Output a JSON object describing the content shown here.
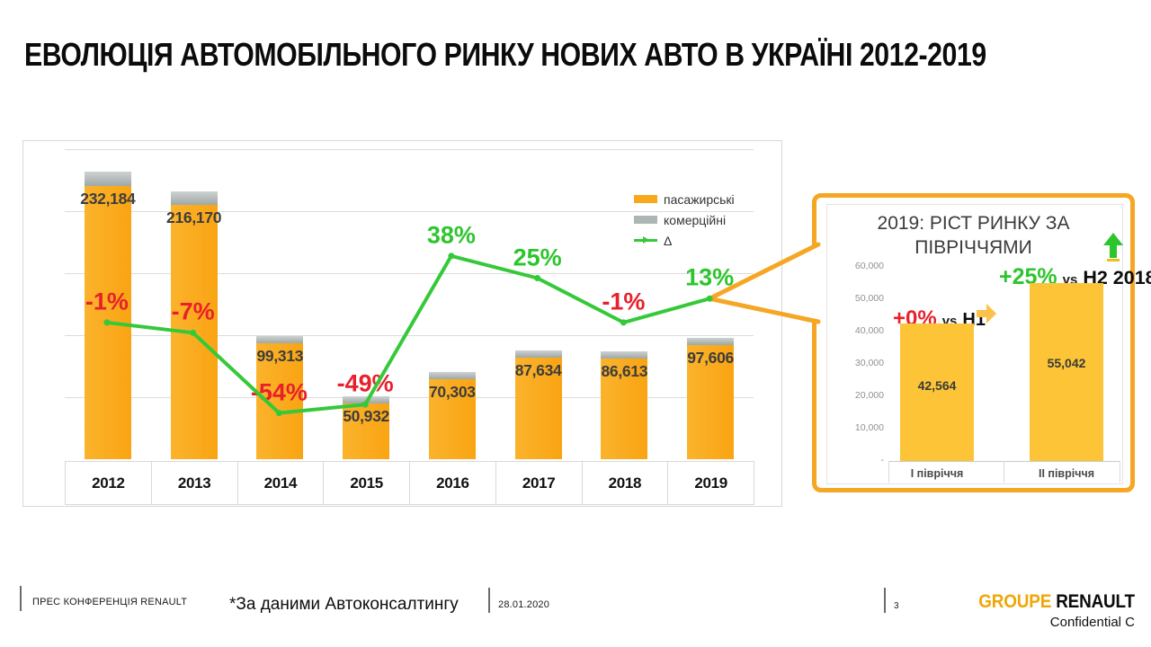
{
  "slide": {
    "title": "ЕВОЛЮЦІЯ АВТОМОБІЛЬНОГО РИНКУ НОВИХ АВТО В УКРАЇНІ 2012-2019"
  },
  "chart_data": [
    {
      "type": "bar",
      "subtype": "stacked-bars-with-delta-line",
      "title": "",
      "categories": [
        "2012",
        "2013",
        "2014",
        "2015",
        "2016",
        "2017",
        "2018",
        "2019"
      ],
      "totals": [
        232184,
        216170,
        99313,
        50932,
        70303,
        87634,
        86613,
        97606
      ],
      "total_labels": [
        "232,184",
        "216,170",
        "99,313",
        "50,932",
        "70,303",
        "87,634",
        "86,613",
        "97,606"
      ],
      "delta_pct": [
        -1,
        -7,
        -54,
        -49,
        38,
        25,
        -1,
        13
      ],
      "delta_labels": [
        "-1%",
        "-7%",
        "-54%",
        "-49%",
        "38%",
        "25%",
        "-1%",
        "13%"
      ],
      "commercial_fraction_est": 0.052,
      "legend": [
        {
          "label": "пасажирські",
          "type": "bar",
          "color": "#F9A81B"
        },
        {
          "label": "комерційні",
          "type": "bar",
          "color": "#AEB6B5"
        },
        {
          "label": "Δ",
          "type": "line",
          "color": "#35C939"
        }
      ],
      "ylim": [
        0,
        250000
      ],
      "gridline_step": 50000,
      "colors": {
        "passenger": "#F9A81B",
        "commercial": "#AEB6B5",
        "delta_line": "#35C939",
        "negative_label": "#E8202C",
        "positive_label": "#2DC52D"
      }
    },
    {
      "type": "bar",
      "title": "2019: РІСТ РИНКУ ЗА ПІВРІЧЧЯМИ",
      "title_lines": [
        "2019: РІСТ РИНКУ ЗА",
        "ПІВРІЧЧЯМИ"
      ],
      "categories": [
        "І півріччя",
        "ІІ півріччя"
      ],
      "values": [
        42564,
        55042
      ],
      "value_labels": [
        "42,564",
        "55,042"
      ],
      "bar_color": "#FCC436",
      "ylim": [
        0,
        60000
      ],
      "yticks": [
        {
          "label": "60,000",
          "value": 60000
        },
        {
          "label": "50,000",
          "value": 50000
        },
        {
          "label": "40,000",
          "value": 40000
        },
        {
          "label": "30,000",
          "value": 30000
        },
        {
          "label": "20,000",
          "value": 20000
        },
        {
          "label": "10,000",
          "value": 10000
        },
        {
          "label": "-",
          "value": 0
        }
      ],
      "annotations": [
        {
          "pct": "+0%",
          "pct_color": "#E8202C",
          "vs": "vs",
          "target": "H1",
          "icon": "right-arrow"
        },
        {
          "pct": "+25%",
          "pct_color": "#2DC52D",
          "vs": "vs",
          "target": "H2 2018",
          "icon": "up-arrow"
        }
      ],
      "border_color": "#F5A623"
    }
  ],
  "footer": {
    "left": "ПРЕС КОНФЕРЕНЦІЯ RENAULT",
    "source": "*За даними Автоконсалтингу",
    "date": "28.01.2020",
    "page": "3",
    "logo_groupe": "GROUPE",
    "logo_renault": "RENAULT",
    "logo_groupe_color": "#EFA706",
    "confidential": "Confidential C"
  }
}
